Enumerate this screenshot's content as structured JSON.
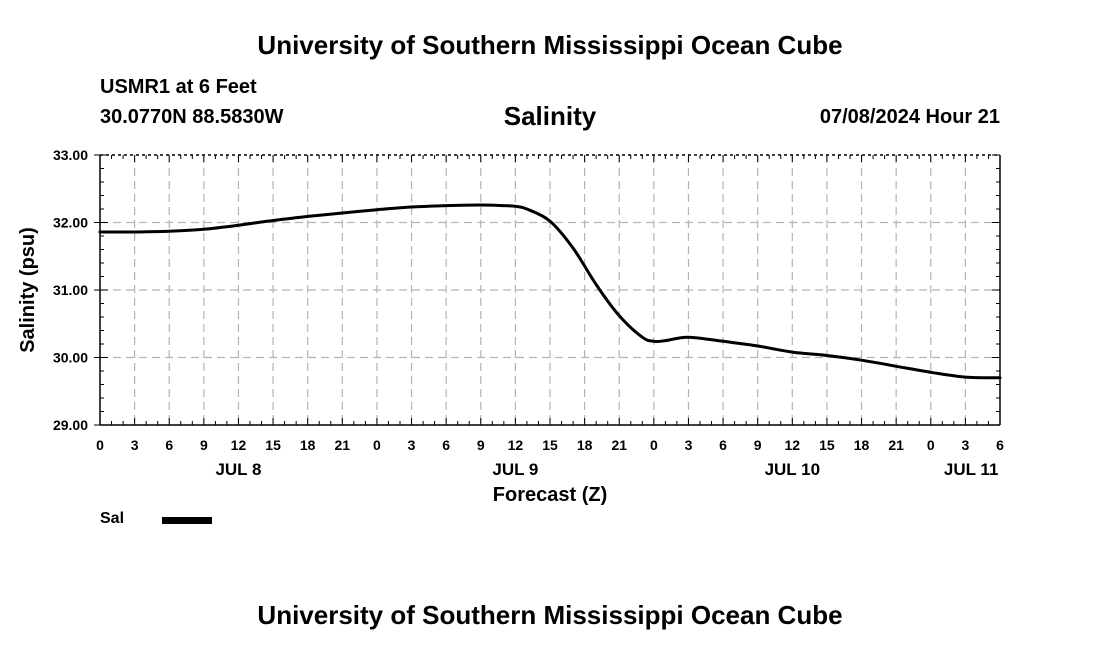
{
  "header": {
    "title": "University of Southern Mississippi Ocean Cube",
    "station": "USMR1 at 6 Feet",
    "coordinates": "30.0770N  88.5830W",
    "chart_title": "Salinity",
    "timestamp": "07/08/2024 Hour 21"
  },
  "footer": {
    "title": "University of Southern Mississippi Ocean Cube"
  },
  "legend": {
    "label": "Sal"
  },
  "chart_data": {
    "type": "line",
    "title": "Salinity",
    "xlabel": "Forecast (Z)",
    "ylabel": "Salinity (psu)",
    "ylim": [
      29,
      33
    ],
    "xlim": [
      0,
      78
    ],
    "grid": true,
    "y_ticks": [
      29,
      30,
      31,
      32,
      33
    ],
    "y_tick_labels": [
      "29.00",
      "30.00",
      "31.00",
      "32.00",
      "33.00"
    ],
    "x_ticks": [
      0,
      3,
      6,
      9,
      12,
      15,
      18,
      21,
      24,
      27,
      30,
      33,
      36,
      39,
      42,
      45,
      48,
      51,
      54,
      57,
      60,
      63,
      66,
      69,
      72,
      75,
      78
    ],
    "x_tick_labels": [
      "0",
      "3",
      "6",
      "9",
      "12",
      "15",
      "18",
      "21",
      "0",
      "3",
      "6",
      "9",
      "12",
      "15",
      "18",
      "21",
      "0",
      "3",
      "6",
      "9",
      "12",
      "15",
      "18",
      "21",
      "0",
      "3",
      "6"
    ],
    "date_labels": [
      {
        "x": 12,
        "label": "JUL 8"
      },
      {
        "x": 36,
        "label": "JUL 9"
      },
      {
        "x": 60,
        "label": "JUL 10"
      },
      {
        "x": 75.5,
        "label": "JUL 11"
      }
    ],
    "series": [
      {
        "name": "Sal",
        "color": "#000000",
        "x": [
          0,
          3,
          6,
          9,
          12,
          15,
          18,
          21,
          24,
          27,
          30,
          33,
          35,
          36,
          37,
          39,
          41,
          43,
          45,
          47,
          48,
          49,
          51,
          54,
          57,
          60,
          63,
          66,
          69,
          72,
          75,
          78
        ],
        "y": [
          31.86,
          31.86,
          31.87,
          31.9,
          31.96,
          32.03,
          32.09,
          32.14,
          32.19,
          32.23,
          32.25,
          32.26,
          32.25,
          32.24,
          32.2,
          32.02,
          31.62,
          31.08,
          30.62,
          30.3,
          30.24,
          30.25,
          30.3,
          30.24,
          30.17,
          30.08,
          30.03,
          29.96,
          29.87,
          29.78,
          29.71,
          29.7
        ]
      }
    ]
  }
}
